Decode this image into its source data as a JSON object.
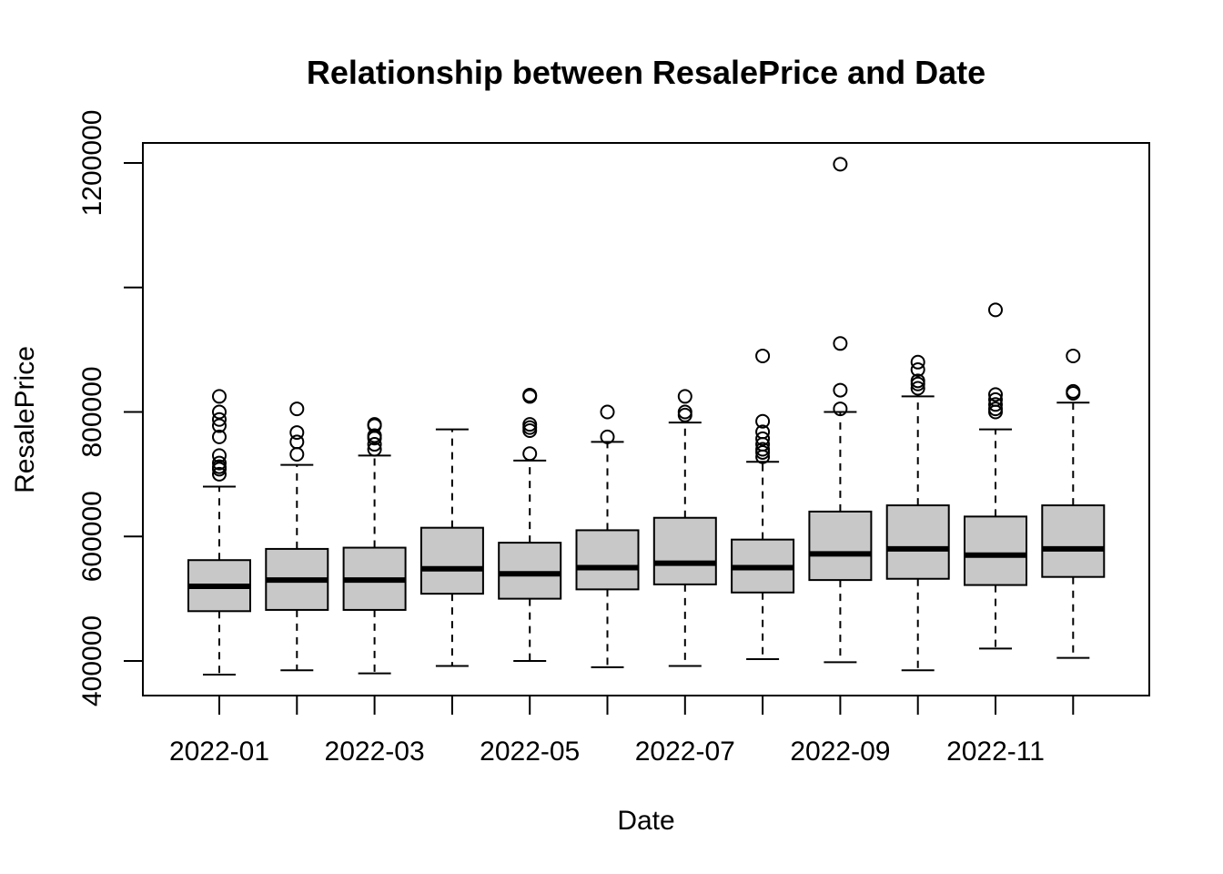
{
  "chart_data": {
    "type": "boxplot",
    "title": "Relationship between ResalePrice and Date",
    "xlabel": "Date",
    "ylabel": "ResalePrice",
    "ylim": [
      345000,
      1230000
    ],
    "y_ticks": [
      400000,
      600000,
      800000,
      1000000,
      1200000
    ],
    "y_tick_labels": [
      "400000",
      "600000",
      "800000",
      "",
      "1200000"
    ],
    "categories": [
      "2022-01",
      "2022-02",
      "2022-03",
      "2022-04",
      "2022-05",
      "2022-06",
      "2022-07",
      "2022-08",
      "2022-09",
      "2022-10",
      "2022-11",
      "2022-12"
    ],
    "x_tick_labels": [
      "2022-01",
      "",
      "2022-03",
      "",
      "2022-05",
      "",
      "2022-07",
      "",
      "2022-09",
      "",
      "2022-11",
      ""
    ],
    "box_fill": "#c8c8c8",
    "grid": false,
    "series": [
      {
        "category": "2022-01",
        "whisker_low": 378000,
        "q1": 480000,
        "median": 520000,
        "q3": 562000,
        "whisker_high": 680000,
        "outliers": [
          700000,
          708000,
          712000,
          718000,
          730000,
          760000,
          778000,
          788000,
          800000,
          825000
        ]
      },
      {
        "category": "2022-02",
        "whisker_low": 385000,
        "q1": 482000,
        "median": 530000,
        "q3": 580000,
        "whisker_high": 715000,
        "outliers": [
          732000,
          752000,
          767000,
          805000
        ]
      },
      {
        "category": "2022-03",
        "whisker_low": 380000,
        "q1": 482000,
        "median": 530000,
        "q3": 582000,
        "whisker_high": 730000,
        "outliers": [
          740000,
          748000,
          758000,
          762000,
          778000,
          780000
        ]
      },
      {
        "category": "2022-04",
        "whisker_low": 392000,
        "q1": 508000,
        "median": 548000,
        "q3": 614000,
        "whisker_high": 772000,
        "outliers": []
      },
      {
        "category": "2022-05",
        "whisker_low": 400000,
        "q1": 500000,
        "median": 540000,
        "q3": 590000,
        "whisker_high": 722000,
        "outliers": [
          733000,
          770000,
          775000,
          780000,
          825000,
          827000
        ]
      },
      {
        "category": "2022-06",
        "whisker_low": 390000,
        "q1": 515000,
        "median": 550000,
        "q3": 610000,
        "whisker_high": 752000,
        "outliers": [
          760000,
          800000
        ]
      },
      {
        "category": "2022-07",
        "whisker_low": 392000,
        "q1": 523000,
        "median": 557000,
        "q3": 630000,
        "whisker_high": 783000,
        "outliers": [
          795000,
          800000,
          825000
        ]
      },
      {
        "category": "2022-08",
        "whisker_low": 403000,
        "q1": 510000,
        "median": 550000,
        "q3": 595000,
        "whisker_high": 720000,
        "outliers": [
          728000,
          735000,
          740000,
          748000,
          757000,
          768000,
          785000,
          890000
        ]
      },
      {
        "category": "2022-09",
        "whisker_low": 398000,
        "q1": 530000,
        "median": 572000,
        "q3": 640000,
        "whisker_high": 800000,
        "outliers": [
          805000,
          835000,
          910000,
          1198000
        ]
      },
      {
        "category": "2022-10",
        "whisker_low": 385000,
        "q1": 532000,
        "median": 580000,
        "q3": 650000,
        "whisker_high": 825000,
        "outliers": [
          838000,
          845000,
          850000,
          868000,
          880000
        ]
      },
      {
        "category": "2022-11",
        "whisker_low": 420000,
        "q1": 522000,
        "median": 570000,
        "q3": 632000,
        "whisker_high": 772000,
        "outliers": [
          800000,
          805000,
          812000,
          820000,
          828000,
          964000
        ]
      },
      {
        "category": "2022-12",
        "whisker_low": 405000,
        "q1": 535000,
        "median": 580000,
        "q3": 650000,
        "whisker_high": 815000,
        "outliers": [
          830000,
          833000,
          890000
        ]
      }
    ]
  }
}
